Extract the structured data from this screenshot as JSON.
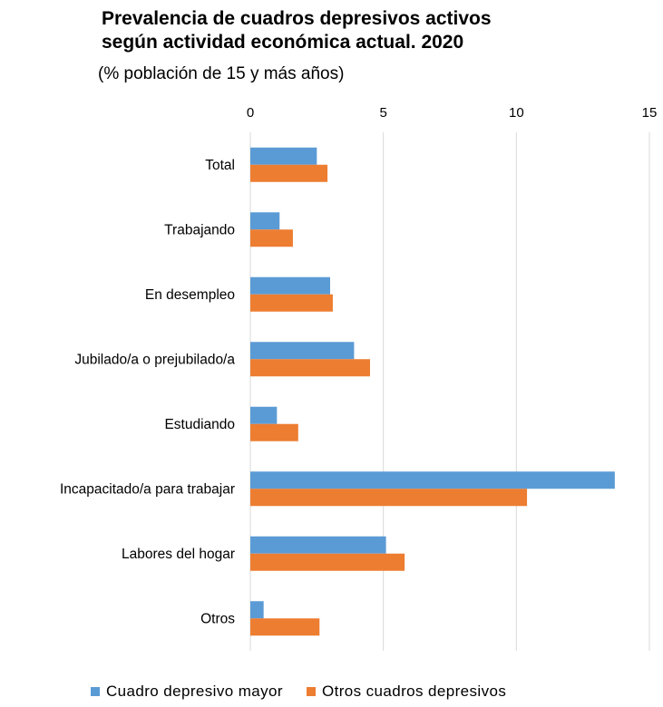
{
  "chart_data": {
    "type": "bar",
    "orientation": "horizontal",
    "title_lines": [
      "Prevalencia de cuadros depresivos activos",
      "según actividad económica actual. 2020"
    ],
    "subtitle": "(% población de 15 y más años)",
    "categories": [
      "Total",
      "Trabajando",
      "En desempleo",
      "Jubilado/a o prejubilado/a",
      "Estudiando",
      "Incapacitado/a para trabajar",
      "Labores del hogar",
      "Otros"
    ],
    "series": [
      {
        "name": "Cuadro depresivo mayor",
        "color": "#5b9bd5",
        "values": [
          2.5,
          1.1,
          3.0,
          3.9,
          1.0,
          13.7,
          5.1,
          0.5
        ]
      },
      {
        "name": "Otros cuadros depresivos",
        "color": "#ed7d31",
        "values": [
          2.9,
          1.6,
          3.1,
          4.5,
          1.8,
          10.4,
          5.8,
          2.6
        ]
      }
    ],
    "xlim": [
      0,
      15
    ],
    "xticks": [
      0,
      5,
      10,
      15
    ],
    "x_axis_position": "top",
    "grid": true,
    "legend_position": "bottom"
  }
}
